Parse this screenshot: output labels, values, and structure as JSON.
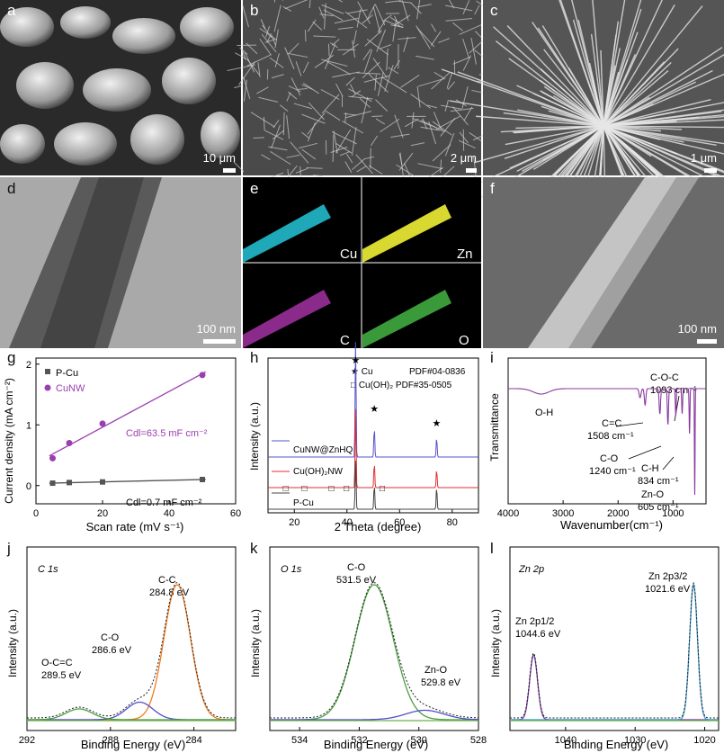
{
  "panels": {
    "a": {
      "label": "a",
      "scale": "10 μm"
    },
    "b": {
      "label": "b",
      "scale": "2 μm"
    },
    "c": {
      "label": "c",
      "scale": "1 μm"
    },
    "d": {
      "label": "d",
      "scale": "100 nm"
    },
    "e": {
      "label": "e",
      "maps": [
        "Cu",
        "Zn",
        "C",
        "O"
      ]
    },
    "f": {
      "label": "f",
      "scale": "100 nm"
    },
    "g": {
      "label": "g"
    },
    "h": {
      "label": "h"
    },
    "i": {
      "label": "i"
    },
    "j": {
      "label": "j"
    },
    "k": {
      "label": "k"
    },
    "l": {
      "label": "l"
    }
  },
  "chart_data": [
    {
      "id": "g",
      "type": "scatter",
      "xlabel": "Scan rate (mV s⁻¹)",
      "ylabel": "Current density (mA cm⁻²)",
      "xlim": [
        0,
        60
      ],
      "ylim": [
        -0.3,
        2.1
      ],
      "xticks": [
        0,
        20,
        40,
        60
      ],
      "yticks": [
        0,
        1,
        2
      ],
      "series": [
        {
          "name": "P-Cu",
          "x": [
            5,
            10,
            20,
            50
          ],
          "y": [
            0.04,
            0.05,
            0.06,
            0.1
          ],
          "color": "#555555",
          "marker": "square",
          "fit_label": "Cdl=0.7 mF cm⁻²"
        },
        {
          "name": "CuNW",
          "x": [
            5,
            10,
            20,
            50
          ],
          "y": [
            0.45,
            0.7,
            1.02,
            1.82
          ],
          "color": "#9b3fb0",
          "marker": "circle",
          "fit_label": "Cdl=63.5 mF cm⁻²"
        }
      ],
      "legend": "top-left"
    },
    {
      "id": "h",
      "type": "line",
      "xlabel": "2 Theta (degree)",
      "ylabel": "Intensity (a.u.)",
      "xlim": [
        10,
        90
      ],
      "xticks": [
        20,
        40,
        60,
        80
      ],
      "series": [
        {
          "name": "CuNW@ZnHQ",
          "color": "#5555cc",
          "baseline": 2,
          "peaks": [
            [
              43.3,
              9.5
            ],
            [
              50.4,
              2.4
            ],
            [
              74.1,
              1.6
            ]
          ]
        },
        {
          "name": "Cu(OH)₂NW",
          "color": "#e03030",
          "baseline": 1,
          "peaks": [
            [
              43.3,
              6.5
            ],
            [
              50.4,
              2.0
            ],
            [
              74.1,
              1.5
            ]
          ]
        },
        {
          "name": "P-Cu",
          "color": "#444444",
          "baseline": 0,
          "peaks": [
            [
              43.3,
              4.0
            ],
            [
              50.4,
              2.0
            ],
            [
              74.1,
              1.8
            ]
          ]
        }
      ],
      "annotations": [
        "★ Cu",
        "PDF#04-0836",
        "□ Cu(OH)₂ PDF#35-0505"
      ]
    },
    {
      "id": "i",
      "type": "line",
      "xlabel": "Wavenumber(cm⁻¹)",
      "ylabel": "Transmittance",
      "xlim": [
        4000,
        400
      ],
      "xticks": [
        4000,
        3000,
        2000,
        1000
      ],
      "series": [
        {
          "name": "",
          "color": "#8a3aa0"
        }
      ],
      "annotations": [
        "O-H",
        "C=C 1508 cm⁻¹",
        "C-O 1240 cm⁻¹",
        "C-O-C 1093 cm⁻¹",
        "C-H 834 cm⁻¹",
        "Zn-O 605 cm⁻¹"
      ]
    },
    {
      "id": "j",
      "type": "line",
      "title": "C 1s",
      "xlabel": "Binding Energy (eV)",
      "ylabel": "Intensity (a.u.)",
      "xlim": [
        292,
        282
      ],
      "xticks": [
        292,
        288,
        284
      ],
      "peaks": [
        {
          "label": "C-C 284.8 eV",
          "center": 284.8,
          "height": 1.0,
          "color": "#f07c20"
        },
        {
          "label": "C-O 286.6 eV",
          "center": 286.6,
          "height": 0.13,
          "color": "#5050c8"
        },
        {
          "label": "O-C=C 289.5 eV",
          "center": 289.5,
          "height": 0.08,
          "color": "#4aa040"
        }
      ]
    },
    {
      "id": "k",
      "type": "line",
      "title": "O 1s",
      "xlabel": "Binding Energy (eV)",
      "ylabel": "Intensity (a.u.)",
      "xlim": [
        535,
        528
      ],
      "xticks": [
        534,
        532,
        530,
        528
      ],
      "peaks": [
        {
          "label": "C-O 531.5 eV",
          "center": 531.5,
          "height": 1.0,
          "color": "#4aa040"
        },
        {
          "label": "Zn-O 529.8 eV",
          "center": 529.8,
          "height": 0.07,
          "color": "#5050c8"
        }
      ]
    },
    {
      "id": "l",
      "type": "line",
      "title": "Zn 2p",
      "xlabel": "Binding Energy (eV)",
      "ylabel": "Intensity (a.u.)",
      "xlim": [
        1048,
        1018
      ],
      "xticks": [
        1040,
        1030,
        1020
      ],
      "peaks": [
        {
          "label": "Zn 2p1/2 1044.6 eV",
          "center": 1044.6,
          "height": 0.48,
          "color": "#7a3aa0"
        },
        {
          "label": "Zn 2p3/2 1021.6 eV",
          "center": 1021.6,
          "height": 1.0,
          "color": "#3a9ad0"
        }
      ]
    }
  ],
  "text": {
    "g_xlabel": "Scan rate (mV s⁻¹)",
    "g_ylabel": "Current density (mA cm⁻²)",
    "g_leg1": "P-Cu",
    "g_leg2": "CuNW",
    "g_fit1": "Cdl=63.5 mF cm⁻²",
    "g_fit2": "Cdl=0.7 mF cm⁻²",
    "h_xlabel": "2 Theta (degree)",
    "h_ylabel": "Intensity (a.u.)",
    "h_cu": "★ Cu",
    "h_pdf1": "PDF#04-0836",
    "h_pdf2": "□ Cu(OH)₂ PDF#35-0505",
    "h_s1": "CuNW@ZnHQ",
    "h_s2": "Cu(OH)₂NW",
    "h_s3": "P-Cu",
    "i_xlabel": "Wavenumber(cm⁻¹)",
    "i_ylabel": "Transmittance",
    "i_oh": "O-H",
    "i_cc": "C=C",
    "i_cc2": "1508 cm⁻¹",
    "i_co": "C-O",
    "i_co2": "1240 cm⁻¹",
    "i_coc": "C-O-C",
    "i_coc2": "1093 cm⁻¹",
    "i_ch": "C-H",
    "i_ch2": "834 cm⁻¹",
    "i_zno": "Zn-O",
    "i_zno2": "605 cm⁻¹",
    "j_title": "C 1s",
    "j_cc": "C-C",
    "j_cc2": "284.8 eV",
    "j_co": "C-O",
    "j_co2": "286.6 eV",
    "j_occ": "O-C=C",
    "j_occ2": "289.5 eV",
    "k_title": "O 1s",
    "k_co": "C-O",
    "k_co2": "531.5 eV",
    "k_zno": "Zn-O",
    "k_zno2": "529.8 eV",
    "l_title": "Zn 2p",
    "l_p1": "Zn 2p1/2",
    "l_p1e": "1044.6 eV",
    "l_p2": "Zn 2p3/2",
    "l_p2e": "1021.6 eV",
    "xps_xlabel": "Binding Energy (eV)",
    "xps_ylabel": "Intensity (a.u.)"
  }
}
